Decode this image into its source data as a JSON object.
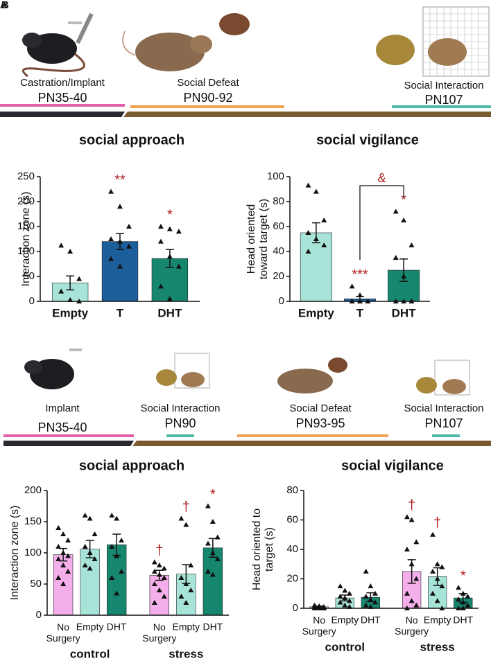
{
  "panel_labels": [
    "A",
    "B"
  ],
  "timelines": [
    {
      "events": [
        {
          "label": "Castration/Implant",
          "time": "PN35-40"
        },
        {
          "label": "Social Defeat",
          "time": "PN90-92"
        },
        {
          "label": "Social Interaction",
          "time": "PN107"
        }
      ]
    },
    {
      "events": [
        {
          "label": "Implant",
          "time": "PN35-40"
        },
        {
          "label": "Social Interaction",
          "time": "PN90"
        },
        {
          "label": "Social Defeat",
          "time": "PN93-95"
        },
        {
          "label": "Social Interaction",
          "time": "PN107"
        }
      ]
    }
  ],
  "chart_data": [
    {
      "type": "bar",
      "title": "social approach",
      "ylabel": [
        "Interaction zone (s)"
      ],
      "categories": [
        "Empty",
        "T",
        "DHT"
      ],
      "values": [
        37,
        120,
        86
      ],
      "errors": [
        14,
        16,
        18
      ],
      "colors": [
        "#a8e3d8",
        "#1c5e9a",
        "#17866f"
      ],
      "points": [
        [
          112,
          100,
          45,
          20,
          3,
          0
        ],
        [
          220,
          190,
          150,
          125,
          120,
          110,
          85,
          70
        ],
        [
          150,
          145,
          140,
          120,
          90,
          70,
          30,
          5
        ]
      ],
      "significance": [
        null,
        "**",
        "*"
      ],
      "ylim": [
        0,
        250
      ],
      "yticks": [
        0,
        50,
        100,
        150,
        200,
        250
      ]
    },
    {
      "type": "bar",
      "title": "social vigilance",
      "ylabel": [
        "Head oriented",
        "toward target (s)"
      ],
      "categories": [
        "Empty",
        "T",
        "DHT"
      ],
      "values": [
        55,
        2,
        25
      ],
      "errors": [
        8,
        2,
        9
      ],
      "colors": [
        "#a8e3d8",
        "#1c5e9a",
        "#17866f"
      ],
      "points": [
        [
          93,
          88,
          65,
          55,
          50,
          45,
          40
        ],
        [
          12,
          5,
          0,
          0,
          0,
          0,
          0,
          0
        ],
        [
          72,
          65,
          45,
          35,
          20,
          0,
          0,
          0,
          0
        ]
      ],
      "significance": [
        null,
        "***",
        "*"
      ],
      "bracket": "&",
      "ylim": [
        0,
        100
      ],
      "yticks": [
        0,
        20,
        40,
        60,
        80,
        100
      ]
    },
    {
      "type": "bar",
      "title": "social approach",
      "ylabel": [
        "Interaction zone (s)"
      ],
      "categories": [
        "No Surgery",
        "Empty",
        "DHT",
        "No Surgery",
        "Empty",
        "DHT"
      ],
      "groups": [
        "control",
        "stress"
      ],
      "values": [
        97,
        106,
        113,
        64,
        66,
        108
      ],
      "errors": [
        10,
        14,
        17,
        8,
        15,
        15
      ],
      "colors": [
        "#f4aee9",
        "#a8e3d8",
        "#17866f",
        "#f4aee9",
        "#a8e3d8",
        "#17866f"
      ],
      "points": [
        [
          140,
          130,
          120,
          110,
          100,
          95,
          90,
          80,
          70,
          60,
          50
        ],
        [
          160,
          155,
          130,
          110,
          100,
          90,
          80,
          75
        ],
        [
          160,
          155,
          120,
          110,
          95,
          70,
          60,
          35
        ],
        [
          85,
          80,
          75,
          70,
          65,
          60,
          50,
          40,
          30,
          20
        ],
        [
          155,
          145,
          80,
          60,
          50,
          40,
          30,
          20
        ],
        [
          175,
          150,
          125,
          115,
          100,
          90,
          70,
          65
        ]
      ],
      "significance": [
        null,
        null,
        null,
        "†",
        "†",
        "*"
      ],
      "ylim": [
        0,
        200
      ],
      "yticks": [
        0,
        50,
        100,
        150,
        200
      ]
    },
    {
      "type": "bar",
      "title": "social vigilance",
      "ylabel": [
        "Head oriented to",
        "target (s)"
      ],
      "categories": [
        "No Surgery",
        "Empty",
        "DHT",
        "No Surgery",
        "Empty",
        "DHT"
      ],
      "groups": [
        "control",
        "stress"
      ],
      "values": [
        1,
        7,
        7.5,
        25,
        21.5,
        7
      ],
      "errors": [
        0.5,
        2,
        3,
        8,
        6,
        3
      ],
      "colors": [
        "#f4aee9",
        "#a8e3d8",
        "#17866f",
        "#f4aee9",
        "#a8e3d8",
        "#17866f"
      ],
      "points": [
        [
          2,
          1.5,
          1,
          1,
          0.5,
          0.5,
          0,
          0,
          0,
          0
        ],
        [
          15,
          12,
          10,
          8,
          7,
          5,
          4,
          2,
          1
        ],
        [
          25,
          15,
          10,
          8,
          6,
          4,
          2,
          1
        ],
        [
          62,
          60,
          45,
          40,
          30,
          20,
          10,
          5,
          2,
          0
        ],
        [
          50,
          30,
          28,
          25,
          20,
          15,
          10,
          5,
          0
        ],
        [
          14,
          10,
          8,
          6,
          4,
          2,
          0,
          0
        ]
      ],
      "significance": [
        null,
        null,
        null,
        "†",
        "†",
        "*"
      ],
      "ylim": [
        0,
        80
      ],
      "yticks": [
        0,
        20,
        40,
        60,
        80
      ]
    }
  ]
}
